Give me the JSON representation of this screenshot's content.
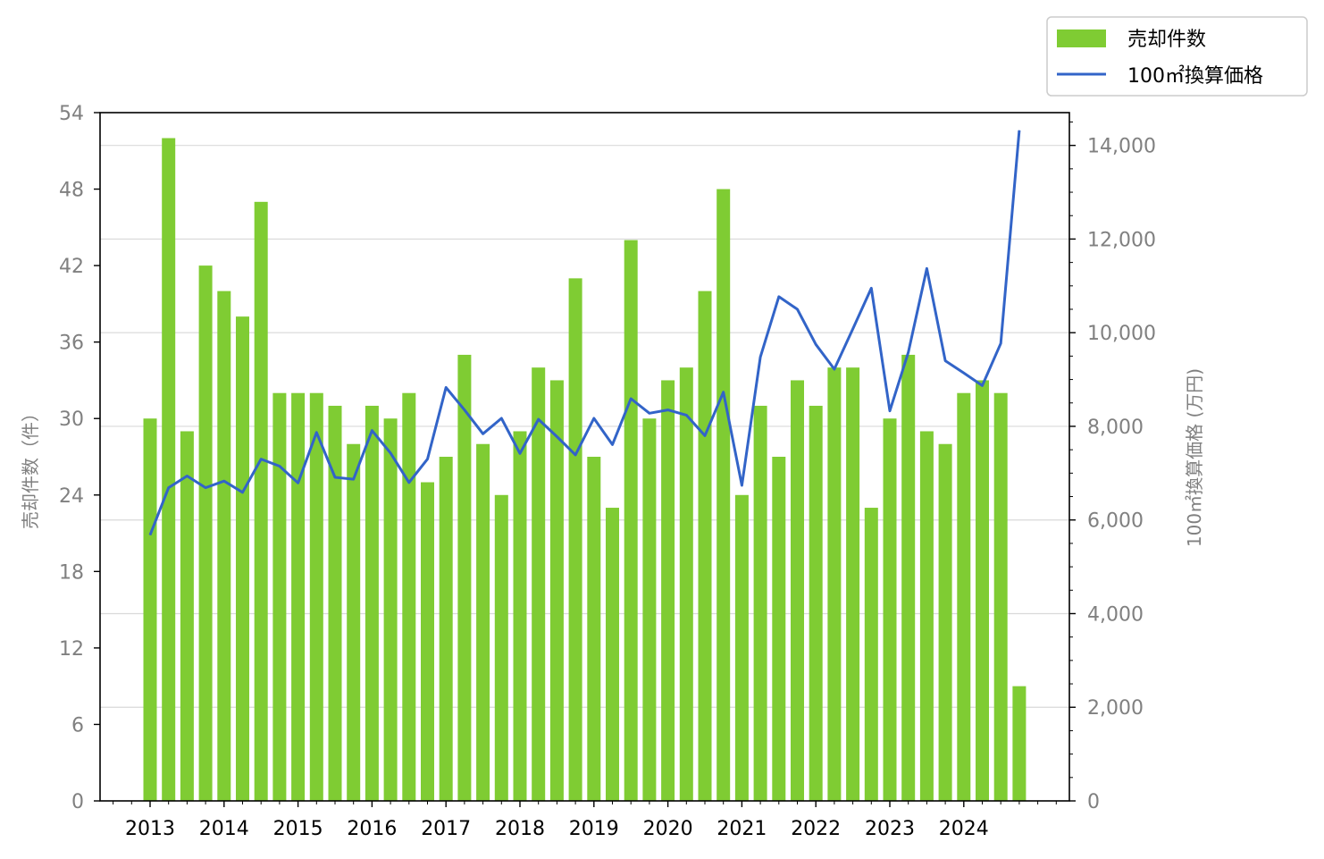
{
  "chart_data": {
    "type": "bar",
    "xlabel": "",
    "ylabel": "売却件数（件）",
    "y2label": "100㎡換算価格 (万円)",
    "x_tick_labels": [
      "2013",
      "2014",
      "2015",
      "2016",
      "2017",
      "2018",
      "2019",
      "2020",
      "2021",
      "2022",
      "2023",
      "2024"
    ],
    "ylim": [
      0,
      54
    ],
    "y2lim": [
      0,
      14700
    ],
    "y_ticks": [
      "0",
      "6",
      "12",
      "18",
      "24",
      "30",
      "36",
      "42",
      "48",
      "54"
    ],
    "y2_ticks": [
      "0",
      "2,000",
      "4,000",
      "6,000",
      "8,000",
      "10,000",
      "12,000",
      "14,000"
    ],
    "grid": "horizontal (right axis)",
    "legend_position": "top-right",
    "series": [
      {
        "name": "売却件数",
        "kind": "bar",
        "axis": "left",
        "color": "#7fcc33",
        "x": [
          "2013-Q1",
          "2013-Q2",
          "2013-Q3",
          "2013-Q4",
          "2014-Q1",
          "2014-Q2",
          "2014-Q3",
          "2014-Q4",
          "2015-Q1",
          "2015-Q2",
          "2015-Q3",
          "2015-Q4",
          "2016-Q1",
          "2016-Q2",
          "2016-Q3",
          "2016-Q4",
          "2017-Q1",
          "2017-Q2",
          "2017-Q3",
          "2017-Q4",
          "2018-Q1",
          "2018-Q2",
          "2018-Q3",
          "2018-Q4",
          "2019-Q1",
          "2019-Q2",
          "2019-Q3",
          "2019-Q4",
          "2020-Q1",
          "2020-Q2",
          "2020-Q3",
          "2020-Q4",
          "2021-Q1",
          "2021-Q2",
          "2021-Q3",
          "2021-Q4",
          "2022-Q1",
          "2022-Q2",
          "2022-Q3",
          "2022-Q4",
          "2023-Q1",
          "2023-Q2",
          "2023-Q3",
          "2023-Q4",
          "2024-Q1",
          "2024-Q2",
          "2024-Q3",
          "2024-Q4"
        ],
        "values": [
          30,
          52,
          29,
          42,
          40,
          38,
          47,
          32,
          32,
          32,
          31,
          28,
          31,
          30,
          32,
          25,
          27,
          35,
          28,
          24,
          29,
          34,
          33,
          41,
          27,
          23,
          44,
          30,
          33,
          34,
          40,
          48,
          24,
          31,
          27,
          33,
          31,
          34,
          34,
          23,
          30,
          35,
          29,
          28,
          32,
          33,
          32,
          9
        ]
      },
      {
        "name": "100㎡換算価格",
        "kind": "line",
        "axis": "right",
        "color": "#3264c8",
        "x": [
          "2013-Q1",
          "2013-Q2",
          "2013-Q3",
          "2013-Q4",
          "2014-Q1",
          "2014-Q2",
          "2014-Q3",
          "2014-Q4",
          "2015-Q1",
          "2015-Q2",
          "2015-Q3",
          "2015-Q4",
          "2016-Q1",
          "2016-Q2",
          "2016-Q3",
          "2016-Q4",
          "2017-Q1",
          "2017-Q2",
          "2017-Q3",
          "2017-Q4",
          "2018-Q1",
          "2018-Q2",
          "2018-Q3",
          "2018-Q4",
          "2019-Q1",
          "2019-Q2",
          "2019-Q3",
          "2019-Q4",
          "2020-Q1",
          "2020-Q2",
          "2020-Q3",
          "2020-Q4",
          "2021-Q1",
          "2021-Q2",
          "2021-Q3",
          "2021-Q4",
          "2022-Q1",
          "2022-Q2",
          "2022-Q3",
          "2022-Q4",
          "2023-Q1",
          "2023-Q2",
          "2023-Q3",
          "2023-Q4",
          "2024-Q1",
          "2024-Q2",
          "2024-Q3",
          "2024-Q4"
        ],
        "values": [
          5680,
          6690,
          6940,
          6690,
          6830,
          6590,
          7300,
          7150,
          6790,
          7870,
          6910,
          6870,
          7910,
          7430,
          6800,
          7300,
          8830,
          8350,
          7840,
          8170,
          7420,
          8150,
          7780,
          7390,
          8170,
          7610,
          8590,
          8280,
          8350,
          8240,
          7800,
          8730,
          6740,
          9480,
          10770,
          10500,
          9750,
          9220,
          10080,
          10950,
          8330,
          9580,
          11370,
          9400,
          9140,
          8870,
          9770,
          14320
        ]
      }
    ]
  }
}
